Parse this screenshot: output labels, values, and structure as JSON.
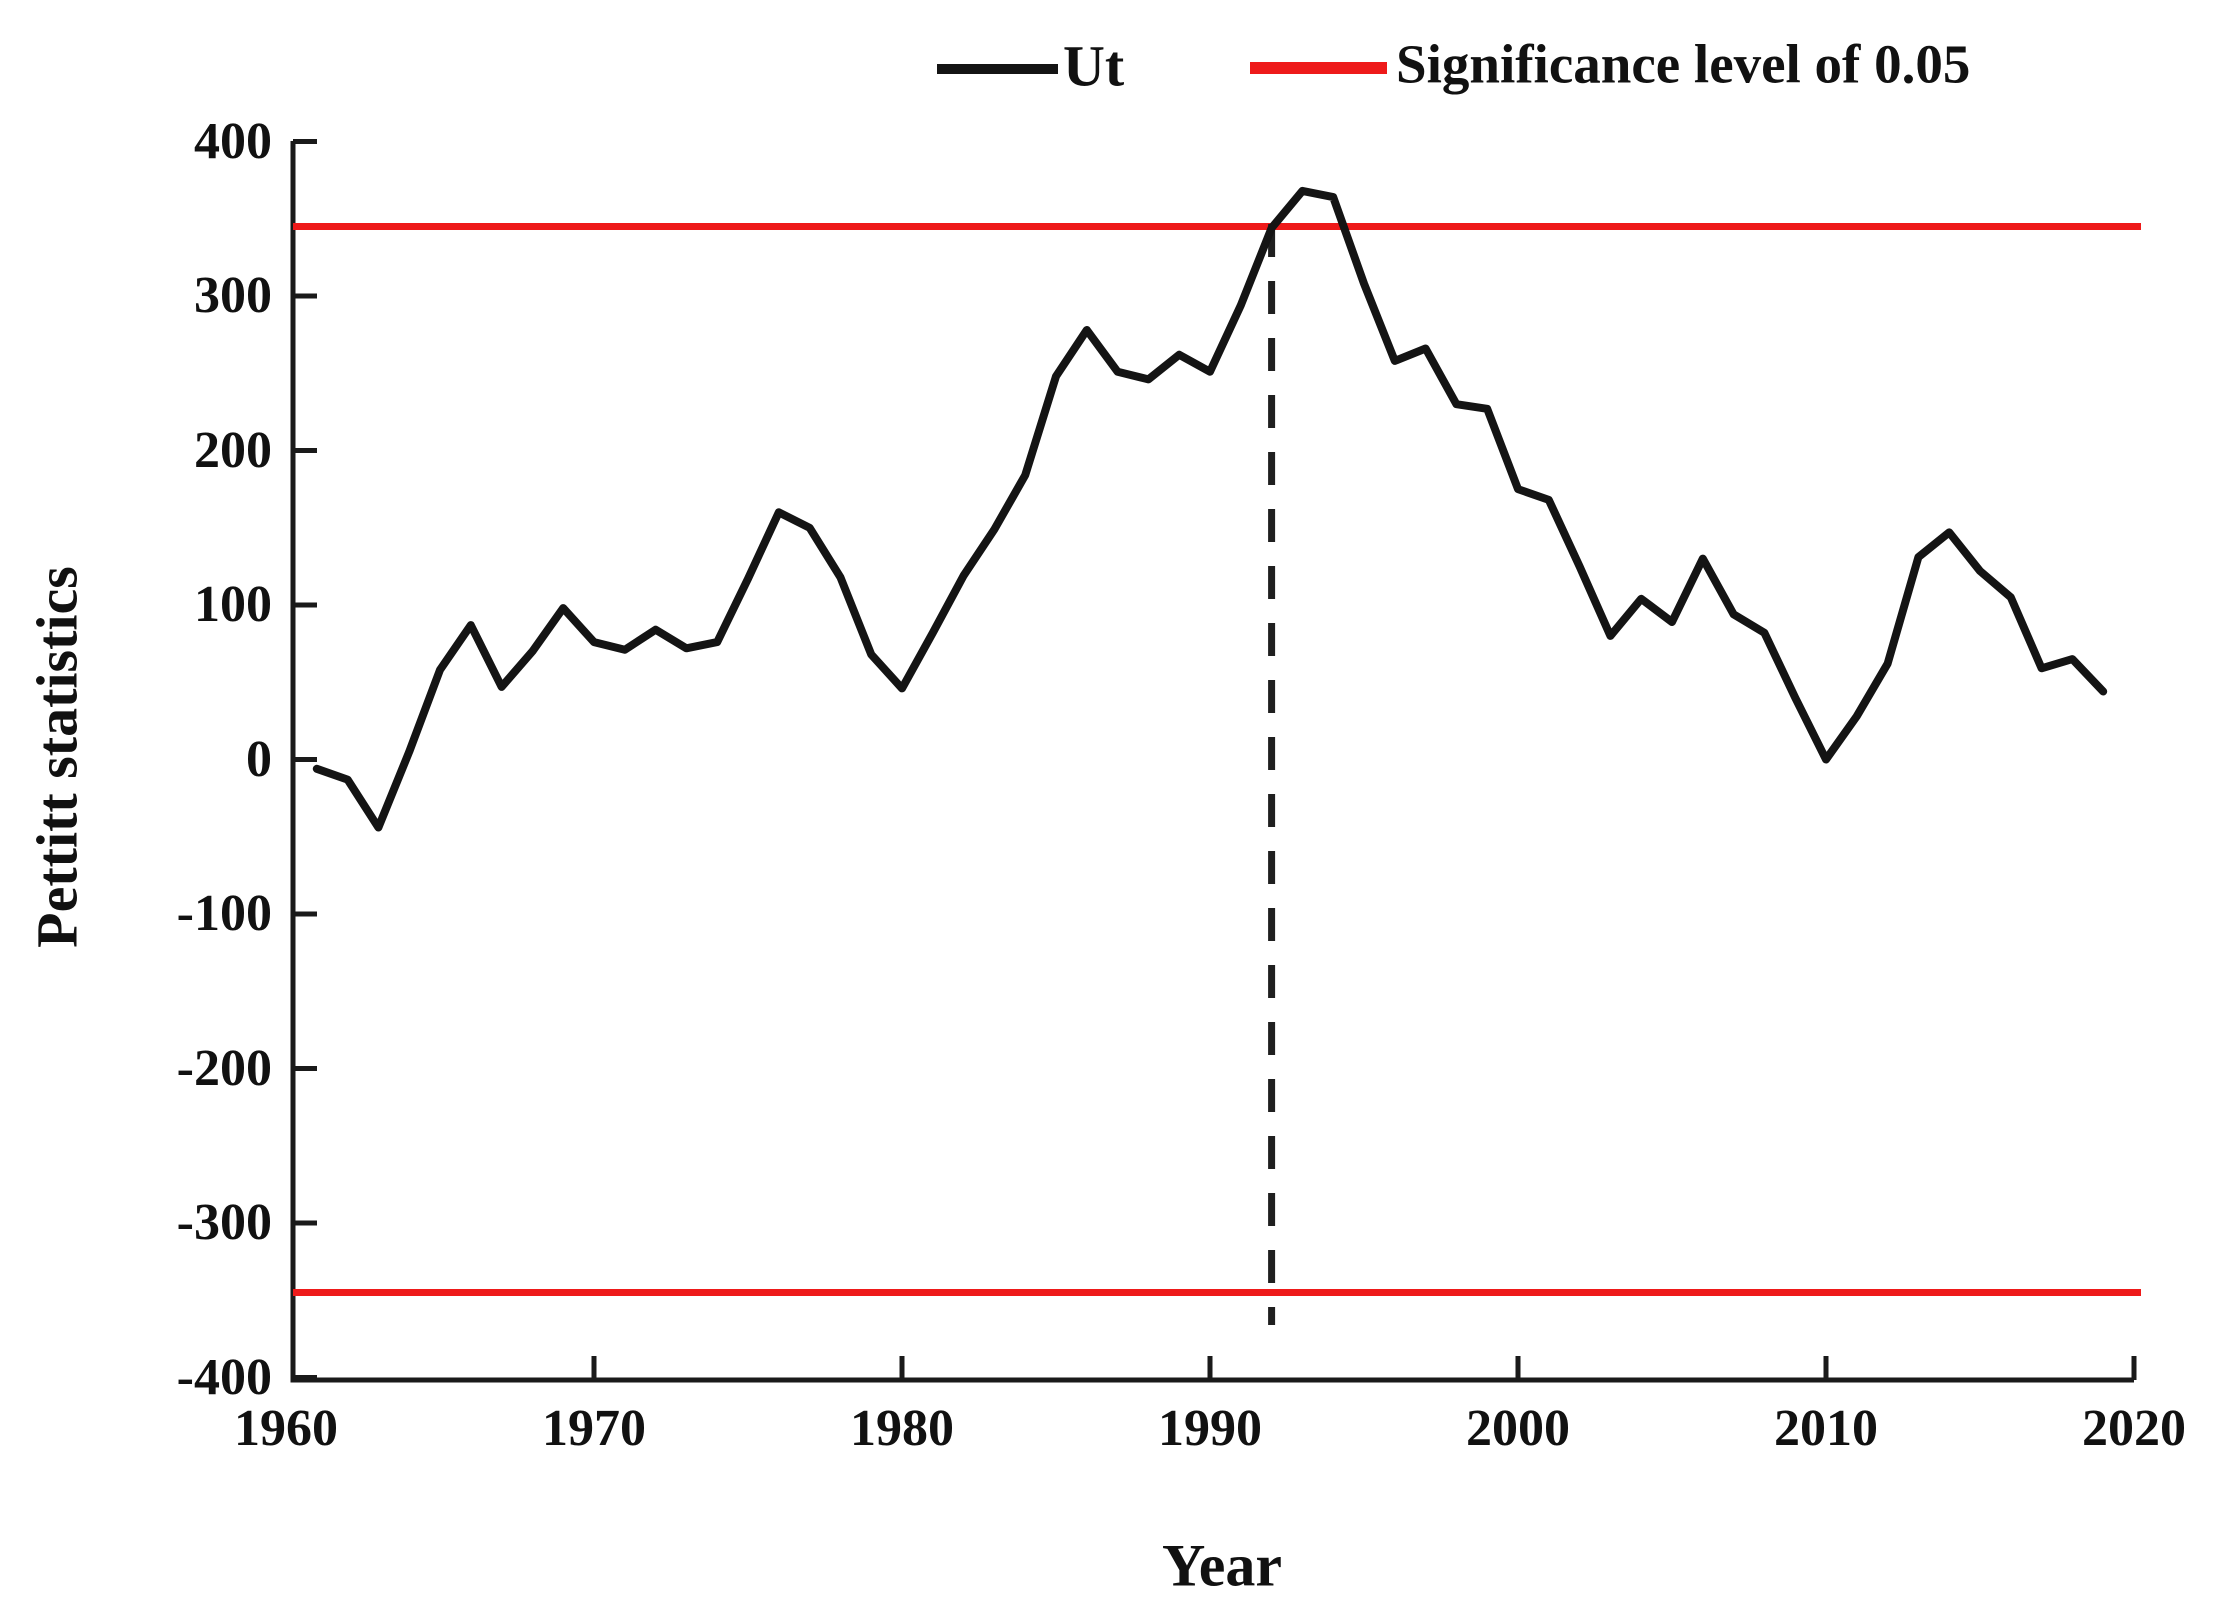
{
  "figure": {
    "background": "#ffffff",
    "axis_color": "#1a1a1a",
    "text_color": "#111111"
  },
  "legend": {
    "position": "top",
    "series1_label": "Ut",
    "series1_color": "#141414",
    "series2_label": "Significance level of 0.05",
    "series2_color": "#ee1a1a"
  },
  "axes": {
    "x_label": "Year",
    "y_label": "Pettitt statistics"
  },
  "chart_data": {
    "type": "line",
    "title": "",
    "xlabel": "Year",
    "ylabel": "Pettitt statistics",
    "xlim": [
      1960,
      2020
    ],
    "ylim": [
      -400,
      400
    ],
    "grid": false,
    "legend_position": "top",
    "x_ticks": [
      1960,
      1970,
      1980,
      1990,
      2000,
      2010,
      2020
    ],
    "x_tick_labels": [
      "1960",
      "1970",
      "1980",
      "1990",
      "2000",
      "2010",
      "2020"
    ],
    "y_ticks": [
      400,
      300,
      200,
      100,
      0,
      -100,
      -200,
      -300,
      -400
    ],
    "y_tick_labels": [
      "400",
      "300",
      "200",
      "100",
      "0",
      "-100",
      "-200",
      "-300",
      "-400"
    ],
    "series": [
      {
        "name": "Ut",
        "color": "#141414",
        "style": "solid",
        "x": [
          1961,
          1962,
          1963,
          1964,
          1965,
          1966,
          1967,
          1968,
          1969,
          1970,
          1971,
          1972,
          1973,
          1974,
          1975,
          1976,
          1977,
          1978,
          1979,
          1980,
          1981,
          1982,
          1983,
          1984,
          1985,
          1986,
          1987,
          1988,
          1989,
          1990,
          1991,
          1992,
          1993,
          1994,
          1995,
          1996,
          1997,
          1998,
          1999,
          2000,
          2001,
          2002,
          2003,
          2004,
          2005,
          2006,
          2007,
          2008,
          2009,
          2010,
          2011,
          2012,
          2013,
          2014,
          2015,
          2016,
          2017,
          2018,
          2019
        ],
        "values": [
          -6,
          -13,
          -44,
          5,
          58,
          87,
          47,
          70,
          98,
          76,
          71,
          84,
          72,
          76,
          117,
          160,
          150,
          118,
          68,
          46,
          82,
          119,
          149,
          184,
          248,
          278,
          251,
          246,
          262,
          251,
          294,
          344,
          368,
          364,
          308,
          258,
          266,
          230,
          227,
          175,
          168,
          125,
          80,
          104,
          89,
          130,
          94,
          82,
          40,
          0,
          28,
          62,
          131,
          147,
          122,
          105,
          59,
          65,
          44
        ]
      },
      {
        "name": "Significance level of 0.05",
        "color": "#ee1a1a",
        "style": "horizontal-threshold-lines",
        "values": [
          345,
          -345
        ]
      }
    ],
    "annotations": {
      "change_point_year": 1992,
      "change_point_marker": "vertical-dashed-line",
      "dashed_line_color": "#1f1f1f"
    }
  }
}
